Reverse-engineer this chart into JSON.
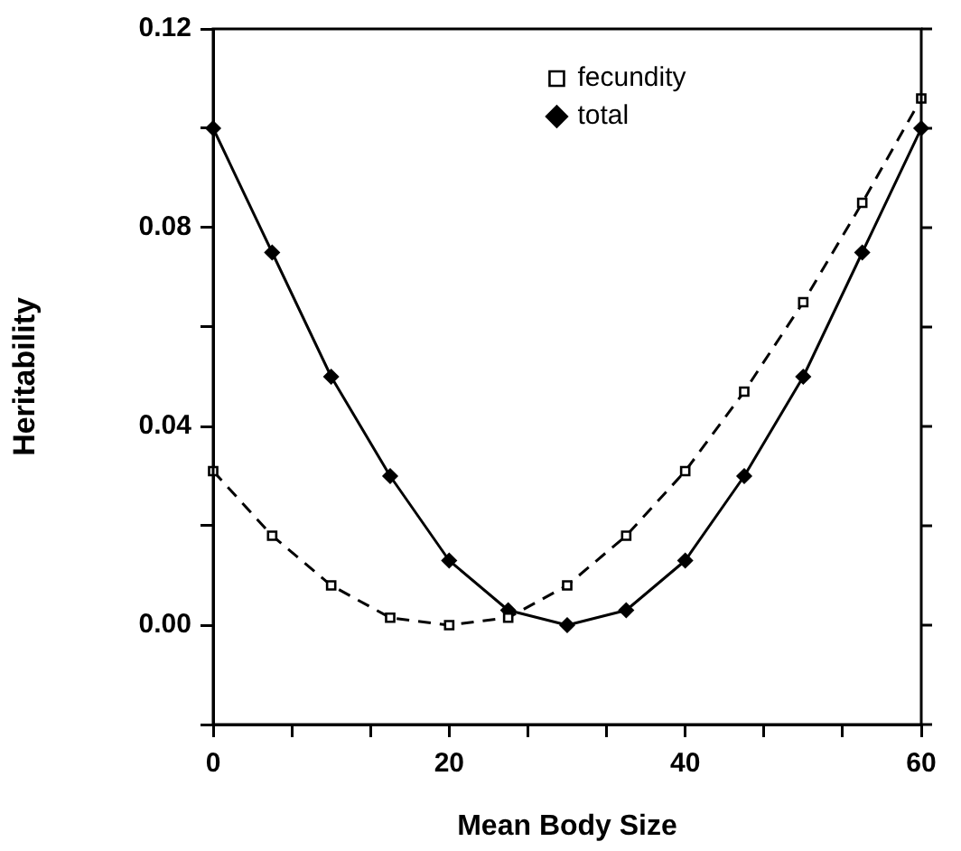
{
  "chart_data": {
    "type": "line",
    "xlabel": "Mean Body Size",
    "ylabel": "Heritability",
    "x": [
      0,
      5,
      10,
      15,
      20,
      25,
      30,
      35,
      40,
      45,
      50,
      55,
      60
    ],
    "series": [
      {
        "name": "fecundity",
        "color": "#000000",
        "marker": "square",
        "line_style": "dashed",
        "values": [
          0.031,
          0.018,
          0.008,
          0.0015,
          0,
          0.0015,
          0.008,
          0.018,
          0.031,
          0.047,
          0.065,
          0.085,
          0.106
        ]
      },
      {
        "name": "total",
        "color": "#000000",
        "marker": "diamond",
        "line_style": "solid",
        "values": [
          0.1,
          0.075,
          0.05,
          0.03,
          0.013,
          0.003,
          0,
          0.003,
          0.013,
          0.03,
          0.05,
          0.075,
          0.1
        ]
      }
    ],
    "xlim": [
      0,
      60
    ],
    "xticks": [
      0,
      {
        "value": 6.667,
        "label": null
      },
      {
        "value": 13.333,
        "label": null
      },
      20,
      {
        "value": 26.667,
        "label": null
      },
      {
        "value": 33.333,
        "label": null
      },
      40,
      {
        "value": 46.667,
        "label": null
      },
      {
        "value": 53.333,
        "label": null
      },
      60
    ],
    "ylim": [
      -0.02,
      0.12
    ],
    "yticks": [
      {
        "value": -0.02,
        "label": null
      },
      "0.00",
      {
        "value": 0.02,
        "label": null
      },
      0.04,
      {
        "value": 0.06,
        "label": null
      },
      0.08,
      {
        "value": 0.1,
        "label": null
      },
      0.12
    ],
    "grid": false,
    "legend": "top"
  }
}
